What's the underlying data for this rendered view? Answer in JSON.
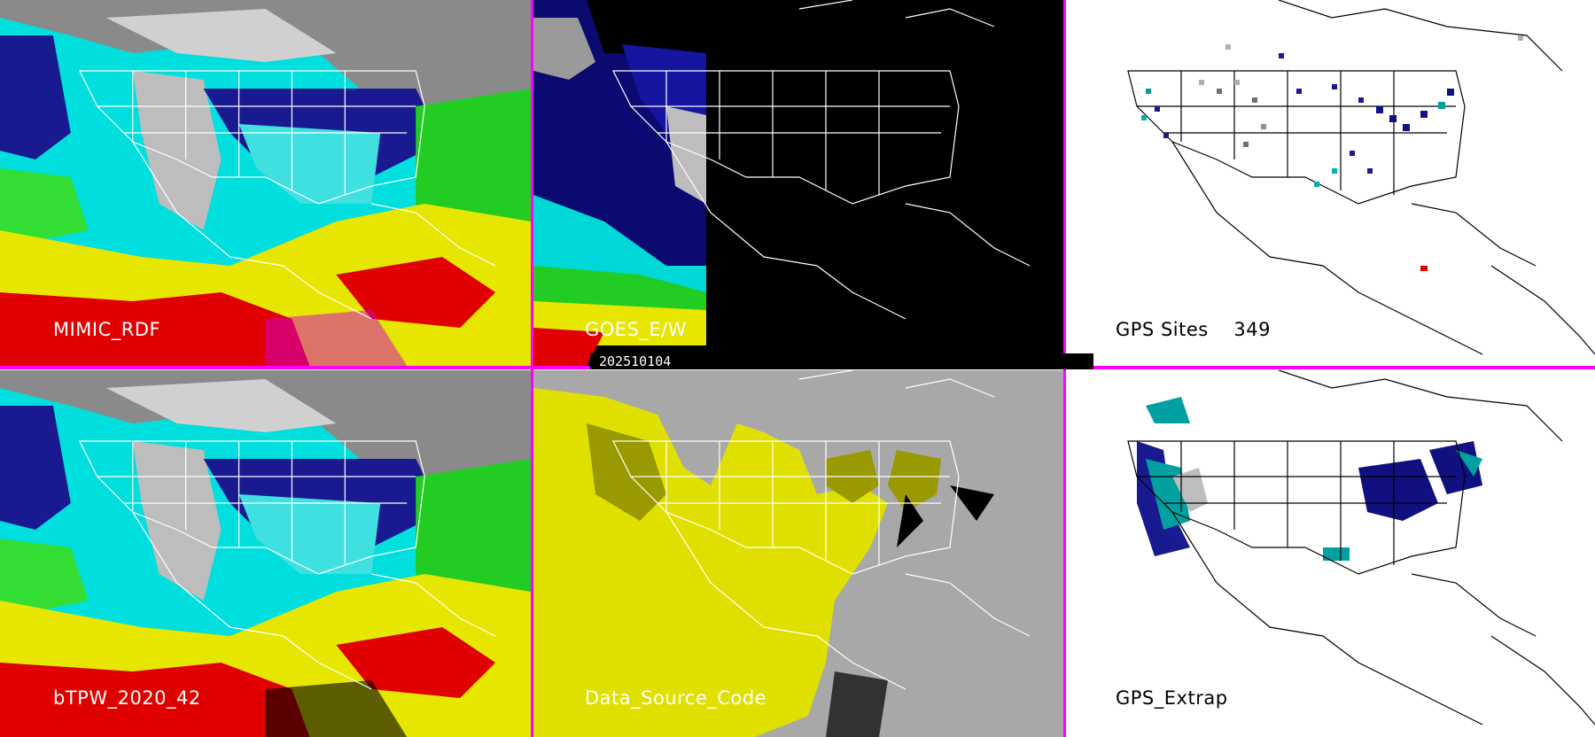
{
  "panels": [
    {
      "id": "p1",
      "label": "MIMIC_RDF"
    },
    {
      "id": "p2",
      "label": "GOES_E/W"
    },
    {
      "id": "p3",
      "label": "GPS Sites    349"
    },
    {
      "id": "p4",
      "label": "bTPW_2020_42"
    },
    {
      "id": "p5",
      "label": "Data_Source_Code"
    },
    {
      "id": "p6",
      "label": "GPS_Extrap"
    }
  ],
  "date_stamp": "202510104",
  "colors": {
    "divider": "#ff00ff",
    "tpw_scale": [
      "#808080",
      "#1a1a8c",
      "#00e5e5",
      "#00cc00",
      "#e5e500",
      "#e50000"
    ],
    "source_yellow": "#e0e000",
    "source_gray": "#a8a8a8",
    "source_olive": "#999900"
  }
}
